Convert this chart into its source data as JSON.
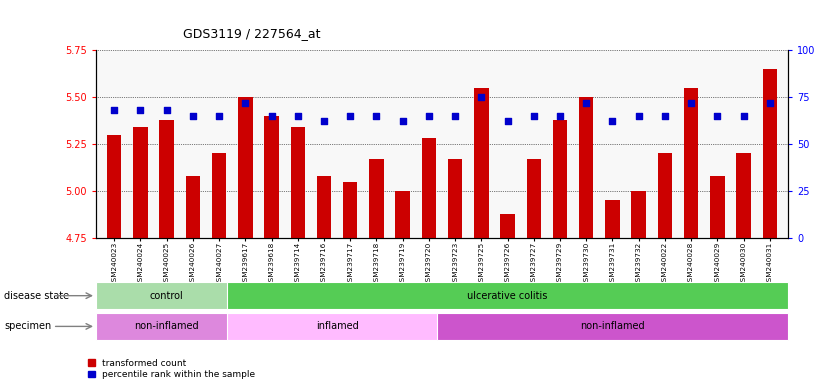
{
  "title": "GDS3119 / 227564_at",
  "samples": [
    "GSM240023",
    "GSM240024",
    "GSM240025",
    "GSM240026",
    "GSM240027",
    "GSM239617",
    "GSM239618",
    "GSM239714",
    "GSM239716",
    "GSM239717",
    "GSM239718",
    "GSM239719",
    "GSM239720",
    "GSM239723",
    "GSM239725",
    "GSM239726",
    "GSM239727",
    "GSM239729",
    "GSM239730",
    "GSM239731",
    "GSM239732",
    "GSM240022",
    "GSM240028",
    "GSM240029",
    "GSM240030",
    "GSM240031"
  ],
  "bar_values": [
    5.3,
    5.34,
    5.38,
    5.08,
    5.2,
    5.5,
    5.4,
    5.34,
    5.08,
    5.05,
    5.17,
    5.0,
    5.28,
    5.17,
    5.55,
    4.88,
    5.17,
    5.38,
    5.5,
    4.95,
    5.0,
    5.2,
    5.55,
    5.08,
    5.2,
    5.65
  ],
  "dot_values": [
    68,
    68,
    68,
    65,
    65,
    72,
    65,
    65,
    62,
    65,
    65,
    62,
    65,
    65,
    75,
    62,
    65,
    65,
    72,
    62,
    65,
    65,
    72,
    65,
    65,
    72
  ],
  "ylim_left": [
    4.75,
    5.75
  ],
  "ylim_right": [
    0,
    100
  ],
  "yticks_left": [
    4.75,
    5.0,
    5.25,
    5.5,
    5.75
  ],
  "yticks_right": [
    0,
    25,
    50,
    75,
    100
  ],
  "bar_color": "#cc0000",
  "dot_color": "#0000cc",
  "bg_color": "#ffffff",
  "disease_state_bands": [
    {
      "label": "control",
      "start": 0,
      "end": 5,
      "color": "#aaddaa"
    },
    {
      "label": "ulcerative colitis",
      "start": 5,
      "end": 26,
      "color": "#55cc55"
    }
  ],
  "specimen_bands": [
    {
      "label": "non-inflamed",
      "start": 0,
      "end": 5,
      "color": "#dd88dd"
    },
    {
      "label": "inflamed",
      "start": 5,
      "end": 13,
      "color": "#ffbbff"
    },
    {
      "label": "non-inflamed",
      "start": 13,
      "end": 26,
      "color": "#cc55cc"
    }
  ],
  "n_samples": 26
}
